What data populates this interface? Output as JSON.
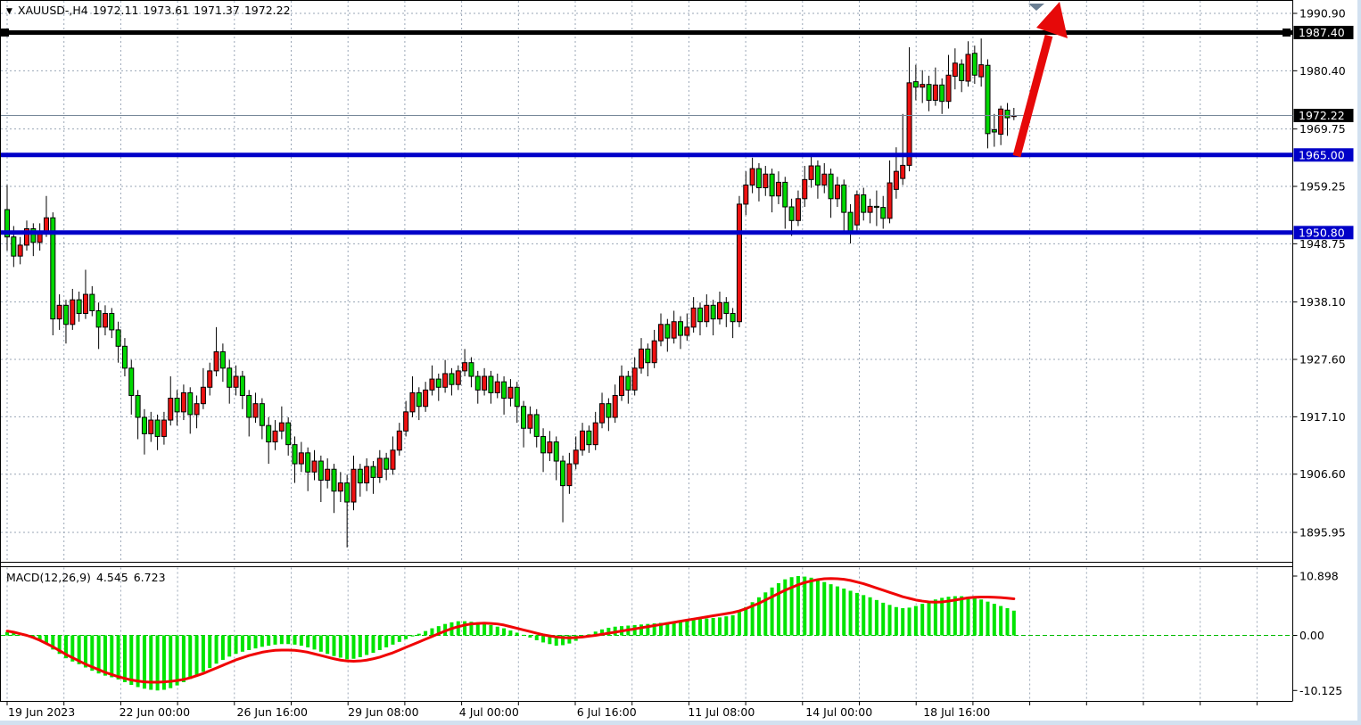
{
  "window": {
    "symbol_period": "XAUUSD-,H4",
    "open": "1972.11",
    "high": "1973.61",
    "low": "1971.37",
    "close": "1972.22"
  },
  "colors": {
    "background": "#ffffff",
    "grid": "#9aa6b6",
    "bull_candle": "#ee1111",
    "bear_candle": "#00d800",
    "candle_outline": "#000000",
    "macd_histogram": "#00e400",
    "macd_signal": "#f00505",
    "macd_zero_line": "#00bb00",
    "level_blue": "#0000c8",
    "level_black": "#000000",
    "current_price_line": "#778899",
    "badge_black": "#000000",
    "badge_blue": "#0000c8",
    "arrow_red": "#e60909",
    "shift_triangle": "#6b7f93",
    "axis_text": "#000000",
    "badge_text": "#ffffff"
  },
  "price_axis": {
    "ticks": [
      1990.9,
      1980.4,
      1969.75,
      1959.25,
      1948.75,
      1938.1,
      1927.6,
      1917.1,
      1906.6,
      1895.95
    ],
    "badges": [
      {
        "price": 1987.4,
        "bg": "#000000"
      },
      {
        "price": 1972.22,
        "bg": "#000000"
      },
      {
        "price": 1965.0,
        "bg": "#0000c8"
      },
      {
        "price": 1950.8,
        "bg": "#0000c8"
      }
    ]
  },
  "time_axis": {
    "labels": [
      {
        "text": "19 Jun 2023",
        "i": 0
      },
      {
        "text": "22 Jun 00:00",
        "i": 17
      },
      {
        "text": "26 Jun 16:00",
        "i": 35
      },
      {
        "text": "29 Jun 08:00",
        "i": 52
      },
      {
        "text": "4 Jul 00:00",
        "i": 69
      },
      {
        "text": "6 Jul 16:00",
        "i": 87
      },
      {
        "text": "11 Jul 08:00",
        "i": 104
      },
      {
        "text": "14 Jul 00:00",
        "i": 122
      },
      {
        "text": "18 Jul 16:00",
        "i": 140
      }
    ]
  },
  "indicator": {
    "label": "MACD(12,26,9)",
    "value": "4.545",
    "signal_value": "6.723",
    "axis": [
      {
        "text": "10.898",
        "v": 10.898
      },
      {
        "text": "0.00",
        "v": 0
      },
      {
        "text": "-10.125",
        "v": -10.125
      }
    ]
  },
  "chart_data": {
    "type": "candlestick",
    "symbol": "XAUUSD-",
    "timeframe": "H4",
    "title": "XAUUSD- H4 candlestick chart with MACD(12,26,9)",
    "ylim_price_panel": [
      1893.0,
      1993.3
    ],
    "ylim_macd_panel": [
      -10.125,
      10.898
    ],
    "grid": true,
    "current_price": 1972.22,
    "horizontal_lines": [
      {
        "price": 1987.4,
        "color": "#000000",
        "thickness": 5,
        "selected_handles": true
      },
      {
        "price": 1965.0,
        "color": "#0000c8",
        "thickness": 5,
        "selected_handles": false
      },
      {
        "price": 1950.8,
        "color": "#0000c8",
        "thickness": 5,
        "selected_handles": false
      }
    ],
    "annotations": [
      {
        "type": "up-arrow",
        "color": "#e60909",
        "from_price": 1965.0,
        "note": "thick red arrow from 1965.00 level pointing up past 1987.40"
      },
      {
        "type": "chart-shift-triangle",
        "color": "#6b7f93",
        "position": "top-right"
      }
    ],
    "candles": [
      [
        1955.0,
        1959.5,
        1947.5,
        1950.0
      ],
      [
        1950.0,
        1952.0,
        1944.5,
        1946.5
      ],
      [
        1946.5,
        1950.0,
        1945.0,
        1948.5
      ],
      [
        1948.5,
        1953.0,
        1947.5,
        1951.5
      ],
      [
        1951.5,
        1952.5,
        1946.5,
        1949.0
      ],
      [
        1949.0,
        1952.5,
        1947.5,
        1951.0
      ],
      [
        1951.0,
        1957.5,
        1950.0,
        1953.5
      ],
      [
        1953.5,
        1954.5,
        1932.0,
        1935.0
      ],
      [
        1935.0,
        1939.5,
        1933.0,
        1937.5
      ],
      [
        1937.5,
        1938.5,
        1930.5,
        1934.0
      ],
      [
        1934.0,
        1940.5,
        1933.0,
        1938.5
      ],
      [
        1938.5,
        1940.0,
        1934.5,
        1936.0
      ],
      [
        1936.0,
        1944.0,
        1935.0,
        1939.5
      ],
      [
        1939.5,
        1941.0,
        1935.5,
        1936.5
      ],
      [
        1936.5,
        1938.0,
        1929.5,
        1933.5
      ],
      [
        1933.5,
        1937.5,
        1932.0,
        1936.0
      ],
      [
        1936.0,
        1937.0,
        1931.5,
        1933.0
      ],
      [
        1933.0,
        1934.5,
        1927.0,
        1930.0
      ],
      [
        1930.0,
        1931.5,
        1924.5,
        1926.0
      ],
      [
        1926.0,
        1927.5,
        1917.5,
        1921.0
      ],
      [
        1921.0,
        1922.0,
        1913.0,
        1917.0
      ],
      [
        1917.0,
        1918.5,
        1910.2,
        1914.0
      ],
      [
        1914.0,
        1918.0,
        1912.5,
        1916.5
      ],
      [
        1916.5,
        1917.5,
        1911.0,
        1913.5
      ],
      [
        1913.5,
        1918.0,
        1912.0,
        1916.5
      ],
      [
        1916.5,
        1924.5,
        1915.5,
        1920.5
      ],
      [
        1920.5,
        1922.0,
        1915.5,
        1918.0
      ],
      [
        1918.0,
        1923.0,
        1916.5,
        1921.5
      ],
      [
        1921.5,
        1922.5,
        1914.0,
        1917.5
      ],
      [
        1917.5,
        1921.0,
        1915.0,
        1919.5
      ],
      [
        1919.5,
        1926.0,
        1918.5,
        1922.5
      ],
      [
        1922.5,
        1927.0,
        1921.0,
        1925.5
      ],
      [
        1925.5,
        1933.5,
        1924.5,
        1929.0
      ],
      [
        1929.0,
        1930.5,
        1923.5,
        1926.0
      ],
      [
        1926.0,
        1927.5,
        1919.5,
        1922.5
      ],
      [
        1922.5,
        1926.5,
        1921.0,
        1924.5
      ],
      [
        1924.5,
        1925.5,
        1918.5,
        1921.0
      ],
      [
        1921.0,
        1922.0,
        1913.5,
        1917.0
      ],
      [
        1917.0,
        1921.5,
        1916.0,
        1919.5
      ],
      [
        1919.5,
        1920.5,
        1913.0,
        1915.5
      ],
      [
        1915.5,
        1917.0,
        1908.5,
        1912.5
      ],
      [
        1912.5,
        1916.5,
        1911.0,
        1914.5
      ],
      [
        1914.5,
        1919.0,
        1913.0,
        1916.0
      ],
      [
        1916.0,
        1917.0,
        1910.0,
        1912.0
      ],
      [
        1912.0,
        1913.5,
        1905.0,
        1908.5
      ],
      [
        1908.5,
        1912.5,
        1907.0,
        1910.5
      ],
      [
        1910.5,
        1911.5,
        1903.5,
        1907.0
      ],
      [
        1907.0,
        1911.0,
        1905.5,
        1909.0
      ],
      [
        1909.0,
        1910.0,
        1901.5,
        1905.5
      ],
      [
        1905.5,
        1909.5,
        1904.0,
        1907.5
      ],
      [
        1907.5,
        1908.5,
        1899.5,
        1903.5
      ],
      [
        1903.5,
        1907.0,
        1901.5,
        1905.0
      ],
      [
        1905.0,
        1906.5,
        1893.2,
        1901.5
      ],
      [
        1901.5,
        1910.0,
        1900.0,
        1907.5
      ],
      [
        1907.5,
        1908.5,
        1902.5,
        1905.0
      ],
      [
        1905.0,
        1909.5,
        1903.5,
        1908.0
      ],
      [
        1908.0,
        1909.0,
        1903.0,
        1906.0
      ],
      [
        1906.0,
        1911.0,
        1905.0,
        1909.5
      ],
      [
        1909.5,
        1910.5,
        1905.5,
        1907.5
      ],
      [
        1907.5,
        1913.5,
        1906.5,
        1911.0
      ],
      [
        1911.0,
        1916.0,
        1910.0,
        1914.5
      ],
      [
        1914.5,
        1920.0,
        1913.5,
        1918.0
      ],
      [
        1918.0,
        1924.5,
        1917.0,
        1921.5
      ],
      [
        1921.5,
        1922.5,
        1916.5,
        1919.0
      ],
      [
        1919.0,
        1923.5,
        1918.0,
        1922.0
      ],
      [
        1922.0,
        1926.5,
        1921.0,
        1924.0
      ],
      [
        1924.0,
        1925.0,
        1920.0,
        1922.5
      ],
      [
        1922.5,
        1927.5,
        1921.5,
        1925.0
      ],
      [
        1925.0,
        1926.0,
        1921.0,
        1923.0
      ],
      [
        1923.0,
        1926.5,
        1922.0,
        1925.5
      ],
      [
        1925.5,
        1929.5,
        1924.5,
        1927.0
      ],
      [
        1927.0,
        1928.0,
        1922.5,
        1924.5
      ],
      [
        1924.5,
        1925.5,
        1919.5,
        1922.0
      ],
      [
        1922.0,
        1926.0,
        1921.0,
        1924.5
      ],
      [
        1924.5,
        1925.5,
        1919.5,
        1921.5
      ],
      [
        1921.5,
        1925.0,
        1920.5,
        1923.5
      ],
      [
        1923.5,
        1924.5,
        1917.5,
        1920.5
      ],
      [
        1920.5,
        1924.0,
        1919.0,
        1922.5
      ],
      [
        1922.5,
        1923.5,
        1916.0,
        1919.0
      ],
      [
        1919.0,
        1920.0,
        1911.5,
        1915.0
      ],
      [
        1915.0,
        1919.0,
        1914.0,
        1917.5
      ],
      [
        1917.5,
        1918.5,
        1911.5,
        1913.5
      ],
      [
        1913.5,
        1915.0,
        1907.0,
        1910.5
      ],
      [
        1910.5,
        1914.5,
        1909.0,
        1912.5
      ],
      [
        1912.5,
        1913.5,
        1905.5,
        1909.0
      ],
      [
        1909.0,
        1910.0,
        1897.8,
        1904.5
      ],
      [
        1904.5,
        1910.5,
        1903.0,
        1908.5
      ],
      [
        1908.5,
        1913.5,
        1907.5,
        1911.0
      ],
      [
        1911.0,
        1916.0,
        1910.0,
        1914.5
      ],
      [
        1914.5,
        1915.5,
        1910.5,
        1912.0
      ],
      [
        1912.0,
        1918.0,
        1911.0,
        1916.0
      ],
      [
        1916.0,
        1921.5,
        1915.0,
        1919.5
      ],
      [
        1919.5,
        1920.5,
        1914.5,
        1917.0
      ],
      [
        1917.0,
        1923.0,
        1916.0,
        1921.0
      ],
      [
        1921.0,
        1926.5,
        1920.0,
        1924.5
      ],
      [
        1924.5,
        1925.5,
        1919.5,
        1922.0
      ],
      [
        1922.0,
        1928.0,
        1921.0,
        1926.0
      ],
      [
        1926.0,
        1931.5,
        1925.0,
        1929.5
      ],
      [
        1929.5,
        1930.5,
        1924.5,
        1927.0
      ],
      [
        1927.0,
        1933.0,
        1926.0,
        1931.0
      ],
      [
        1931.0,
        1936.0,
        1930.0,
        1934.0
      ],
      [
        1934.0,
        1935.0,
        1929.0,
        1931.5
      ],
      [
        1931.5,
        1936.5,
        1930.5,
        1934.5
      ],
      [
        1934.5,
        1935.5,
        1929.5,
        1932.0
      ],
      [
        1932.0,
        1936.0,
        1931.0,
        1933.5
      ],
      [
        1933.5,
        1939.0,
        1932.5,
        1937.0
      ],
      [
        1937.0,
        1938.0,
        1932.0,
        1934.5
      ],
      [
        1934.5,
        1939.5,
        1933.5,
        1937.5
      ],
      [
        1937.5,
        1938.5,
        1932.0,
        1935.0
      ],
      [
        1935.0,
        1940.0,
        1934.0,
        1938.0
      ],
      [
        1938.0,
        1939.0,
        1933.5,
        1936.0
      ],
      [
        1936.0,
        1937.0,
        1931.5,
        1934.5
      ],
      [
        1934.5,
        1957.5,
        1933.5,
        1956.0
      ],
      [
        1956.0,
        1962.0,
        1954.0,
        1959.5
      ],
      [
        1959.5,
        1964.5,
        1958.0,
        1962.5
      ],
      [
        1962.5,
        1963.5,
        1956.5,
        1959.0
      ],
      [
        1959.0,
        1963.0,
        1957.5,
        1961.5
      ],
      [
        1961.5,
        1962.5,
        1954.5,
        1957.5
      ],
      [
        1957.5,
        1962.0,
        1956.0,
        1960.0
      ],
      [
        1960.0,
        1961.0,
        1951.5,
        1955.5
      ],
      [
        1955.5,
        1957.0,
        1950.2,
        1953.0
      ],
      [
        1953.0,
        1958.5,
        1952.0,
        1957.0
      ],
      [
        1957.0,
        1963.0,
        1955.5,
        1960.5
      ],
      [
        1960.5,
        1965.3,
        1959.0,
        1963.0
      ],
      [
        1963.0,
        1964.0,
        1957.0,
        1959.5
      ],
      [
        1959.5,
        1963.5,
        1958.0,
        1961.5
      ],
      [
        1961.5,
        1962.5,
        1953.5,
        1957.0
      ],
      [
        1957.0,
        1961.0,
        1955.5,
        1959.5
      ],
      [
        1959.5,
        1960.5,
        1950.5,
        1954.5
      ],
      [
        1954.5,
        1956.0,
        1948.8,
        1950.8
      ],
      [
        1952.2,
        1958.5,
        1950.5,
        1957.7
      ],
      [
        1957.7,
        1959.0,
        1953.0,
        1954.5
      ],
      [
        1954.5,
        1957.0,
        1952.5,
        1955.6
      ],
      [
        1955.6,
        1958.5,
        1952.0,
        1955.4
      ],
      [
        1955.4,
        1957.5,
        1951.5,
        1953.4
      ],
      [
        1953.4,
        1964.0,
        1952.5,
        1959.9
      ],
      [
        1958.7,
        1966.4,
        1957.0,
        1962.0
      ],
      [
        1960.7,
        1972.5,
        1959.5,
        1963.1
      ],
      [
        1963.1,
        1984.7,
        1962.0,
        1978.2
      ],
      [
        1978.4,
        1981.5,
        1975.0,
        1977.4
      ],
      [
        1977.4,
        1980.5,
        1974.5,
        1977.9
      ],
      [
        1977.9,
        1979.5,
        1973.0,
        1975.0
      ],
      [
        1975.0,
        1981.0,
        1974.0,
        1977.8
      ],
      [
        1977.8,
        1979.0,
        1972.5,
        1974.8
      ],
      [
        1974.8,
        1983.3,
        1973.5,
        1979.6
      ],
      [
        1979.4,
        1984.5,
        1977.0,
        1981.8
      ],
      [
        1981.6,
        1982.5,
        1976.5,
        1978.6
      ],
      [
        1978.5,
        1985.8,
        1977.5,
        1983.4
      ],
      [
        1983.6,
        1985.0,
        1978.0,
        1979.6
      ],
      [
        1979.3,
        1986.3,
        1977.5,
        1981.5
      ],
      [
        1981.4,
        1982.5,
        1966.2,
        1968.9
      ],
      [
        1969.6,
        1972.5,
        1966.5,
        1969.2
      ],
      [
        1968.8,
        1974.0,
        1966.8,
        1973.4
      ],
      [
        1973.2,
        1974.5,
        1968.5,
        1971.8
      ],
      [
        1972.11,
        1973.61,
        1971.37,
        1972.22
      ]
    ],
    "macd": {
      "histogram": [
        0.6,
        0.45,
        0.3,
        0.1,
        -0.3,
        -0.8,
        -1.4,
        -2.6,
        -3.4,
        -4.2,
        -4.8,
        -5.3,
        -5.9,
        -6.5,
        -7.0,
        -7.4,
        -7.7,
        -8.1,
        -8.6,
        -9.1,
        -9.5,
        -9.8,
        -10.0,
        -10.125,
        -10.0,
        -9.7,
        -9.2,
        -8.6,
        -8.0,
        -7.4,
        -6.7,
        -6.0,
        -5.2,
        -4.5,
        -3.9,
        -3.4,
        -3.0,
        -2.7,
        -2.4,
        -2.1,
        -1.9,
        -1.7,
        -1.6,
        -1.6,
        -1.7,
        -1.9,
        -2.2,
        -2.6,
        -3.0,
        -3.4,
        -3.8,
        -4.1,
        -4.4,
        -4.3,
        -4.0,
        -3.6,
        -3.2,
        -2.7,
        -2.2,
        -1.7,
        -1.2,
        -0.7,
        -0.2,
        0.3,
        0.8,
        1.3,
        1.7,
        2.1,
        2.4,
        2.6,
        2.6,
        2.5,
        2.4,
        2.2,
        1.9,
        1.6,
        1.3,
        0.9,
        0.5,
        0.1,
        -0.4,
        -0.9,
        -1.3,
        -1.6,
        -1.9,
        -1.8,
        -1.5,
        -1.0,
        -0.4,
        0.2,
        0.7,
        1.1,
        1.4,
        1.6,
        1.7,
        1.8,
        1.9,
        2.0,
        2.1,
        2.2,
        2.3,
        2.4,
        2.5,
        2.6,
        2.7,
        2.9,
        3.0,
        3.1,
        3.2,
        3.3,
        3.5,
        3.7,
        4.3,
        5.2,
        6.1,
        7.0,
        7.9,
        8.8,
        9.6,
        10.3,
        10.7,
        10.898,
        10.8,
        10.6,
        10.2,
        9.8,
        9.4,
        9.0,
        8.6,
        8.2,
        7.8,
        7.4,
        7.0,
        6.5,
        6.0,
        5.6,
        5.2,
        5.0,
        5.1,
        5.4,
        5.8,
        6.2,
        6.6,
        6.9,
        7.1,
        7.2,
        7.2,
        7.1,
        6.9,
        6.6,
        6.2,
        5.8,
        5.4,
        5.0,
        4.545
      ],
      "signal": [
        0.8,
        0.6,
        0.3,
        0.0,
        -0.4,
        -0.9,
        -1.5,
        -2.1,
        -2.8,
        -3.5,
        -4.1,
        -4.7,
        -5.3,
        -5.8,
        -6.3,
        -6.8,
        -7.2,
        -7.6,
        -7.9,
        -8.2,
        -8.4,
        -8.55,
        -8.6,
        -8.6,
        -8.55,
        -8.45,
        -8.3,
        -8.1,
        -7.8,
        -7.4,
        -7.0,
        -6.5,
        -6.0,
        -5.5,
        -5.0,
        -4.5,
        -4.1,
        -3.7,
        -3.4,
        -3.1,
        -2.9,
        -2.75,
        -2.7,
        -2.7,
        -2.75,
        -2.9,
        -3.1,
        -3.4,
        -3.7,
        -4.0,
        -4.3,
        -4.55,
        -4.7,
        -4.75,
        -4.7,
        -4.55,
        -4.3,
        -4.0,
        -3.6,
        -3.2,
        -2.7,
        -2.2,
        -1.7,
        -1.2,
        -0.7,
        -0.2,
        0.3,
        0.8,
        1.25,
        1.6,
        1.9,
        2.1,
        2.2,
        2.25,
        2.2,
        2.1,
        1.9,
        1.6,
        1.3,
        1.0,
        0.7,
        0.4,
        0.1,
        -0.1,
        -0.3,
        -0.4,
        -0.45,
        -0.4,
        -0.3,
        -0.15,
        0.0,
        0.2,
        0.4,
        0.6,
        0.8,
        1.0,
        1.2,
        1.4,
        1.6,
        1.8,
        2.0,
        2.2,
        2.4,
        2.6,
        2.8,
        3.0,
        3.2,
        3.4,
        3.6,
        3.8,
        4.0,
        4.2,
        4.5,
        4.9,
        5.4,
        5.9,
        6.5,
        7.1,
        7.7,
        8.3,
        8.8,
        9.3,
        9.7,
        10.0,
        10.25,
        10.4,
        10.45,
        10.4,
        10.3,
        10.1,
        9.8,
        9.5,
        9.1,
        8.7,
        8.3,
        7.9,
        7.5,
        7.1,
        6.8,
        6.5,
        6.3,
        6.15,
        6.1,
        6.15,
        6.3,
        6.5,
        6.7,
        6.9,
        7.0,
        7.05,
        7.05,
        7.0,
        6.95,
        6.85,
        6.723
      ]
    }
  }
}
